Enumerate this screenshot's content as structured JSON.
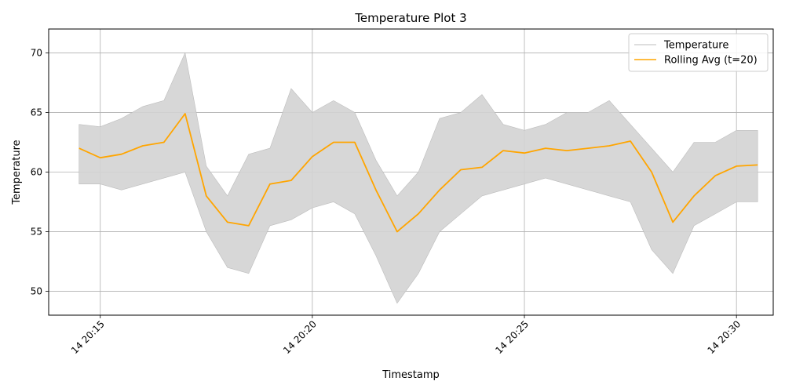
{
  "chart_data": {
    "type": "line",
    "title": "Temperature Plot 3",
    "xlabel": "Timestamp",
    "ylabel": "Temperature",
    "x_axis": {
      "type": "time",
      "range": [
        "14 20:13:47",
        "14 20:30:52"
      ],
      "ticks": [
        {
          "value": "14 20:15:00",
          "label": "14 20:15"
        },
        {
          "value": "14 20:20:00",
          "label": "14 20:20"
        },
        {
          "value": "14 20:25:00",
          "label": "14 20:25"
        },
        {
          "value": "14 20:30:00",
          "label": "14 20:30"
        }
      ],
      "tick_label_rotation_deg": 45
    },
    "y_axis": {
      "range": [
        48,
        72
      ],
      "ticks": [
        50,
        55,
        60,
        65,
        70
      ]
    },
    "grid": true,
    "legend": {
      "placement": "top-right",
      "entries": [
        {
          "label": "Temperature",
          "color": "#d3d3d3"
        },
        {
          "label": "Rolling Avg (t=20)",
          "color": "#ffa500"
        }
      ]
    },
    "x": [
      "14 20:14:30",
      "14 20:15:00",
      "14 20:15:30",
      "14 20:16:00",
      "14 20:16:30",
      "14 20:17:00",
      "14 20:17:30",
      "14 20:18:00",
      "14 20:18:30",
      "14 20:19:00",
      "14 20:19:30",
      "14 20:20:00",
      "14 20:20:30",
      "14 20:21:00",
      "14 20:21:30",
      "14 20:22:00",
      "14 20:22:30",
      "14 20:23:00",
      "14 20:23:30",
      "14 20:24:00",
      "14 20:24:30",
      "14 20:25:00",
      "14 20:25:30",
      "14 20:26:00",
      "14 20:26:30",
      "14 20:27:00",
      "14 20:27:30",
      "14 20:28:00",
      "14 20:28:30",
      "14 20:29:00",
      "14 20:29:30",
      "14 20:30:00",
      "14 20:30:30"
    ],
    "series": [
      {
        "name": "Temperature",
        "color": "#d3d3d3",
        "style": "band",
        "upper": [
          64.0,
          63.8,
          64.5,
          65.5,
          66.0,
          70.0,
          60.5,
          58.0,
          61.5,
          62.0,
          67.0,
          65.0,
          66.0,
          65.0,
          61.0,
          58.0,
          60.0,
          64.5,
          65.0,
          66.5,
          64.0,
          63.5,
          64.0,
          65.0,
          65.0,
          66.0,
          64.0,
          62.0,
          60.0,
          62.5,
          62.5,
          63.5,
          63.5
        ],
        "lower": [
          59.0,
          59.0,
          58.5,
          59.0,
          59.5,
          60.0,
          55.0,
          52.0,
          51.5,
          55.5,
          56.0,
          57.0,
          57.5,
          56.5,
          53.0,
          49.0,
          51.5,
          55.0,
          56.5,
          58.0,
          58.5,
          59.0,
          59.5,
          59.0,
          58.5,
          58.0,
          57.5,
          53.5,
          51.5,
          55.5,
          56.5,
          57.5,
          57.5
        ]
      },
      {
        "name": "Rolling Avg (t=20)",
        "color": "#ffa500",
        "style": "line",
        "values": [
          62.0,
          61.2,
          61.5,
          62.2,
          62.5,
          64.9,
          58.0,
          55.8,
          55.5,
          59.0,
          59.3,
          61.3,
          62.5,
          62.5,
          58.5,
          55.0,
          56.5,
          58.5,
          60.2,
          60.4,
          61.8,
          61.6,
          62.0,
          61.8,
          62.0,
          62.2,
          62.6,
          60.0,
          55.8,
          58.0,
          59.7,
          60.5,
          60.6
        ]
      }
    ]
  }
}
